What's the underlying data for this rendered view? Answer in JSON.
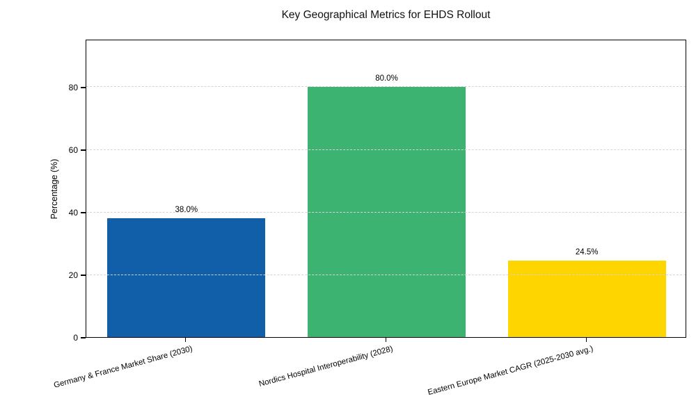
{
  "chart_data": {
    "type": "bar",
    "title": "Key Geographical Metrics for EHDS Rollout",
    "ylabel": "Percentage (%)",
    "xlabel": "",
    "categories": [
      "Germany & France Market Share (2030)",
      "Nordics Hospital Interoperability (2028)",
      "Eastern Europe Market CAGR (2025-2030 avg.)"
    ],
    "values": [
      38.0,
      80.0,
      24.5
    ],
    "value_labels": [
      "38.0%",
      "80.0%",
      "24.5%"
    ],
    "bar_colors": [
      "#105fa8",
      "#3cb371",
      "#ffd500"
    ],
    "yticks": [
      0,
      20,
      40,
      60,
      80
    ],
    "ylim": [
      0,
      95.3
    ],
    "grid": "horizontal-dashed",
    "grid_color": "#d4d4d4",
    "x_label_rotation_deg": 15,
    "legend": "none",
    "frame": "full-box"
  }
}
